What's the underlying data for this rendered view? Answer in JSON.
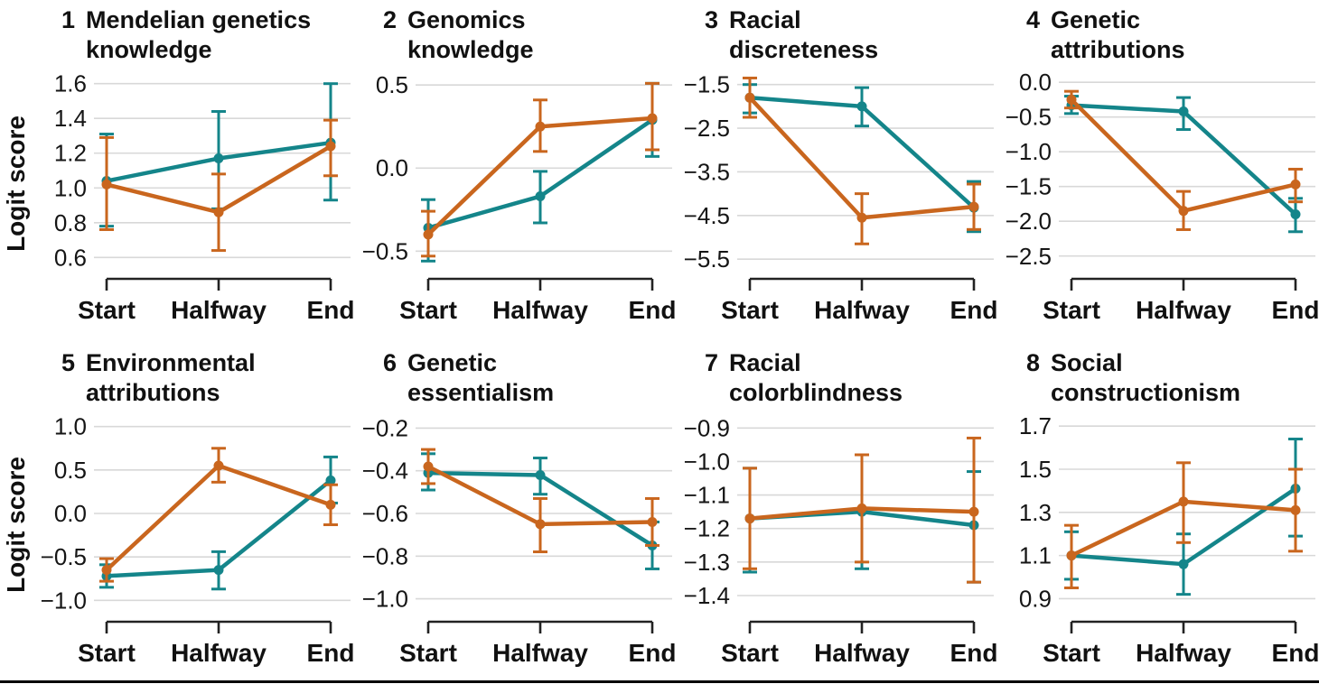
{
  "figure": {
    "ylabel": "Logit score",
    "x_categories": [
      "Start",
      "Halfway",
      "End"
    ],
    "series_colors": {
      "teal": "#14858a",
      "orange": "#c9661e"
    },
    "grid_color": "#d8d8d8",
    "axis_color": "#222222",
    "text_color": "#151515",
    "background": "#ffffff",
    "grid": true,
    "legend": null
  },
  "chart_data": [
    {
      "type": "line",
      "number": "1",
      "title_lines": [
        "Mendelian genetics",
        "knowledge"
      ],
      "ylabel": "Logit score",
      "x_categories": [
        "Start",
        "Halfway",
        "End"
      ],
      "yticks": [
        1.6,
        1.4,
        1.2,
        1.0,
        0.8,
        0.6
      ],
      "ylim": [
        0.56,
        1.64
      ],
      "series": [
        {
          "color_name": "teal",
          "color": "#14858a",
          "values": [
            1.04,
            1.17,
            1.26
          ],
          "ci_low": [
            0.78,
            0.88,
            0.93
          ],
          "ci_high": [
            1.31,
            1.44,
            1.6
          ]
        },
        {
          "color_name": "orange",
          "color": "#c9661e",
          "values": [
            1.02,
            0.86,
            1.24
          ],
          "ci_low": [
            0.76,
            0.64,
            1.07
          ],
          "ci_high": [
            1.29,
            1.08,
            1.39
          ]
        }
      ]
    },
    {
      "type": "line",
      "number": "2",
      "title_lines": [
        "Genomics",
        "knowledge"
      ],
      "ylabel": "Logit score",
      "x_categories": [
        "Start",
        "Halfway",
        "End"
      ],
      "yticks": [
        0.5,
        0.0,
        -0.5
      ],
      "ylim": [
        -0.58,
        0.55
      ],
      "series": [
        {
          "color_name": "teal",
          "color": "#14858a",
          "values": [
            -0.36,
            -0.17,
            0.29
          ],
          "ci_low": [
            -0.56,
            -0.33,
            0.07
          ],
          "ci_high": [
            -0.19,
            -0.02,
            0.51
          ]
        },
        {
          "color_name": "orange",
          "color": "#c9661e",
          "values": [
            -0.4,
            0.25,
            0.3
          ],
          "ci_low": [
            -0.53,
            0.1,
            0.11
          ],
          "ci_high": [
            -0.26,
            0.41,
            0.51
          ]
        }
      ]
    },
    {
      "type": "line",
      "number": "3",
      "title_lines": [
        "Racial",
        "discreteness"
      ],
      "ylabel": "Logit score",
      "x_categories": [
        "Start",
        "Halfway",
        "End"
      ],
      "yticks": [
        -1.5,
        -2.5,
        -3.5,
        -4.5,
        -5.5
      ],
      "ylim": [
        -5.62,
        -1.32
      ],
      "series": [
        {
          "color_name": "teal",
          "color": "#14858a",
          "values": [
            -1.8,
            -2.0,
            -4.32
          ],
          "ci_low": [
            -2.15,
            -2.45,
            -4.87
          ],
          "ci_high": [
            -1.5,
            -1.57,
            -3.72
          ]
        },
        {
          "color_name": "orange",
          "color": "#c9661e",
          "values": [
            -1.8,
            -4.55,
            -4.3
          ],
          "ci_low": [
            -2.25,
            -5.15,
            -4.82
          ],
          "ci_high": [
            -1.35,
            -4.0,
            -3.78
          ]
        }
      ]
    },
    {
      "type": "line",
      "number": "4",
      "title_lines": [
        "Genetic",
        "attributions"
      ],
      "ylabel": "Logit score",
      "x_categories": [
        "Start",
        "Halfway",
        "End"
      ],
      "yticks": [
        0.0,
        -0.5,
        -1.0,
        -1.5,
        -2.0,
        -2.5
      ],
      "ylim": [
        -2.62,
        0.08
      ],
      "series": [
        {
          "color_name": "teal",
          "color": "#14858a",
          "values": [
            -0.33,
            -0.42,
            -1.9
          ],
          "ci_low": [
            -0.45,
            -0.68,
            -2.15
          ],
          "ci_high": [
            -0.2,
            -0.22,
            -1.67
          ]
        },
        {
          "color_name": "orange",
          "color": "#c9661e",
          "values": [
            -0.25,
            -1.85,
            -1.47
          ],
          "ci_low": [
            -0.37,
            -2.12,
            -1.72
          ],
          "ci_high": [
            -0.13,
            -1.57,
            -1.25
          ]
        }
      ]
    },
    {
      "type": "line",
      "number": "5",
      "title_lines": [
        "Environmental",
        "attributions"
      ],
      "ylabel": "Logit score",
      "x_categories": [
        "Start",
        "Halfway",
        "End"
      ],
      "yticks": [
        1.0,
        0.5,
        0.0,
        -0.5,
        -1.0
      ],
      "ylim": [
        -1.08,
        1.08
      ],
      "series": [
        {
          "color_name": "teal",
          "color": "#14858a",
          "values": [
            -0.72,
            -0.65,
            0.38
          ],
          "ci_low": [
            -0.85,
            -0.87,
            0.12
          ],
          "ci_high": [
            -0.59,
            -0.44,
            0.65
          ]
        },
        {
          "color_name": "orange",
          "color": "#c9661e",
          "values": [
            -0.65,
            0.55,
            0.1
          ],
          "ci_low": [
            -0.78,
            0.36,
            -0.13
          ],
          "ci_high": [
            -0.52,
            0.75,
            0.33
          ]
        }
      ]
    },
    {
      "type": "line",
      "number": "6",
      "title_lines": [
        "Genetic",
        "essentialism"
      ],
      "ylabel": "Logit score",
      "x_categories": [
        "Start",
        "Halfway",
        "End"
      ],
      "yticks": [
        -0.2,
        -0.4,
        -0.6,
        -0.8,
        -1.0
      ],
      "ylim": [
        -1.04,
        -0.16
      ],
      "series": [
        {
          "color_name": "teal",
          "color": "#14858a",
          "values": [
            -0.41,
            -0.42,
            -0.75
          ],
          "ci_low": [
            -0.49,
            -0.51,
            -0.86
          ],
          "ci_high": [
            -0.32,
            -0.34,
            -0.64
          ]
        },
        {
          "color_name": "orange",
          "color": "#c9661e",
          "values": [
            -0.38,
            -0.65,
            -0.64
          ],
          "ci_low": [
            -0.46,
            -0.78,
            -0.75
          ],
          "ci_high": [
            -0.3,
            -0.53,
            -0.53
          ]
        }
      ]
    },
    {
      "type": "line",
      "number": "7",
      "title_lines": [
        "Racial",
        "colorblindness"
      ],
      "ylabel": "Logit score",
      "x_categories": [
        "Start",
        "Halfway",
        "End"
      ],
      "yticks": [
        -0.9,
        -1.0,
        -1.1,
        -1.2,
        -1.3,
        -1.4
      ],
      "ylim": [
        -1.435,
        -0.875
      ],
      "series": [
        {
          "color_name": "teal",
          "color": "#14858a",
          "values": [
            -1.17,
            -1.15,
            -1.19
          ],
          "ci_low": [
            -1.33,
            -1.32,
            -1.36
          ],
          "ci_high": [
            -1.02,
            -0.98,
            -1.03
          ]
        },
        {
          "color_name": "orange",
          "color": "#c9661e",
          "values": [
            -1.17,
            -1.14,
            -1.15
          ],
          "ci_low": [
            -1.32,
            -1.3,
            -1.36
          ],
          "ci_high": [
            -1.02,
            -0.98,
            -0.93
          ]
        }
      ]
    },
    {
      "type": "line",
      "number": "8",
      "title_lines": [
        "Social",
        "constructionism"
      ],
      "ylabel": "Logit score",
      "x_categories": [
        "Start",
        "Halfway",
        "End"
      ],
      "yticks": [
        1.7,
        1.5,
        1.3,
        1.1,
        0.9
      ],
      "ylim": [
        0.86,
        1.73
      ],
      "series": [
        {
          "color_name": "teal",
          "color": "#14858a",
          "values": [
            1.1,
            1.06,
            1.41
          ],
          "ci_low": [
            0.99,
            0.92,
            1.19
          ],
          "ci_high": [
            1.21,
            1.2,
            1.64
          ]
        },
        {
          "color_name": "orange",
          "color": "#c9661e",
          "values": [
            1.1,
            1.35,
            1.31
          ],
          "ci_low": [
            0.95,
            1.16,
            1.12
          ],
          "ci_high": [
            1.24,
            1.53,
            1.5
          ]
        }
      ]
    }
  ]
}
